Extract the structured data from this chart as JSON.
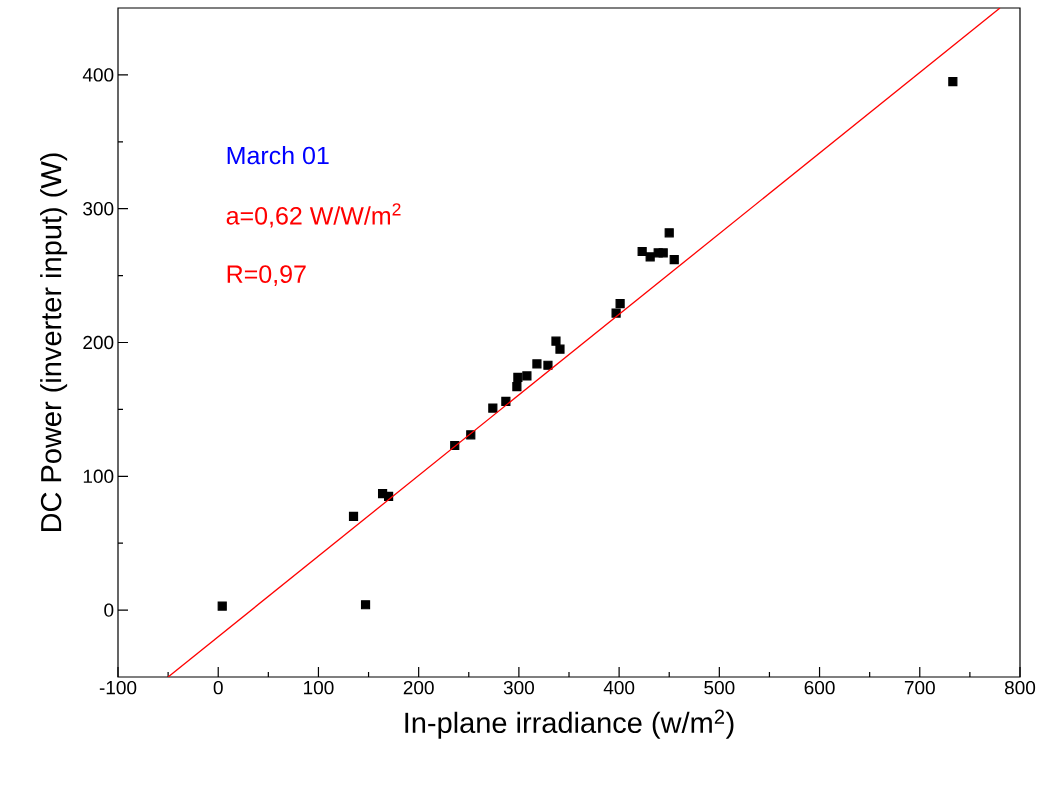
{
  "chart_data": {
    "type": "scatter",
    "xlabel": "In-plane irradiance (w/m$^{2}$)",
    "ylabel": "DC Power (inverter input) (W)",
    "annotations": [
      "March 01",
      "a=0,62 W/W/m$^{2}$",
      "R=0,97"
    ],
    "xlim": [
      -100,
      800
    ],
    "xticks": [
      -100,
      0,
      100,
      200,
      300,
      400,
      500,
      600,
      700,
      800
    ],
    "ylim": [
      -50,
      450
    ],
    "yticks": [
      0,
      100,
      200,
      300,
      400
    ],
    "grid": false,
    "series": [
      {
        "color": "#000000",
        "marker": "square",
        "x": [
          4,
          147,
          135,
          164,
          170,
          236,
          252,
          274,
          287,
          298,
          299,
          308,
          318,
          329,
          337,
          341,
          397,
          401,
          423,
          427,
          431,
          439,
          444,
          450,
          455,
          733
        ],
        "values": [
          3,
          4,
          70,
          87,
          85,
          123,
          131,
          151,
          156,
          167,
          174,
          175,
          184,
          183,
          201,
          195,
          222,
          229,
          268,
          null,
          264,
          267,
          267,
          282,
          262,
          395
        ]
      },
      {
        "type": "line",
        "color": "#ff0000",
        "marker": "none",
        "line_style": "solid",
        "x": [
          -50,
          780
        ],
        "values": [
          -50,
          450
        ]
      }
    ]
  }
}
